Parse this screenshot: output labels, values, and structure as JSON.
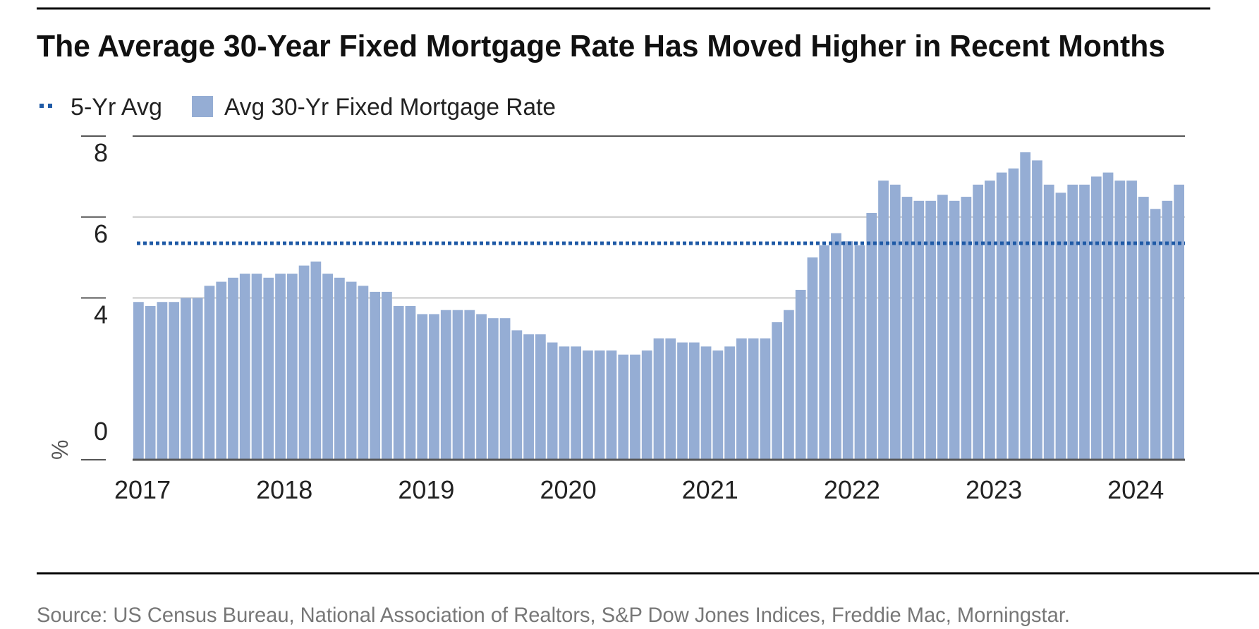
{
  "chart_data": {
    "type": "bar",
    "title": "The Average 30-Year Fixed Mortgage Rate Has Moved Higher in Recent Months",
    "ylabel": "%",
    "xlabel": "",
    "ylim": [
      0,
      8
    ],
    "yticks": [
      0,
      4,
      6,
      8
    ],
    "gridlines": [
      4,
      6,
      8
    ],
    "legend": {
      "position": "top-left",
      "avg_label": "5-Yr Avg",
      "bar_label": "Avg 30-Yr Fixed Mortgage Rate"
    },
    "x_tick_labels": [
      "2017",
      "2018",
      "2019",
      "2020",
      "2021",
      "2022",
      "2023",
      "2024"
    ],
    "start": "2017-01",
    "frequency": "monthly",
    "five_year_avg": 5.35,
    "colors": {
      "bar": "#95add4",
      "avg_line": "#1f5aa6",
      "axis": "#555555",
      "grid": "#c8c8c8"
    },
    "series": [
      {
        "name": "Avg 30-Yr Fixed Mortgage Rate",
        "values": [
          3.9,
          3.8,
          3.9,
          3.9,
          4.0,
          4.0,
          4.3,
          4.4,
          4.5,
          4.6,
          4.6,
          4.5,
          4.6,
          4.6,
          4.8,
          4.9,
          4.6,
          4.5,
          4.4,
          4.3,
          4.15,
          4.15,
          3.8,
          3.8,
          3.6,
          3.6,
          3.7,
          3.7,
          3.7,
          3.6,
          3.5,
          3.5,
          3.2,
          3.1,
          3.1,
          2.9,
          2.8,
          2.8,
          2.7,
          2.7,
          2.7,
          2.6,
          2.6,
          2.7,
          3.0,
          3.0,
          2.9,
          2.9,
          2.8,
          2.7,
          2.8,
          3.0,
          3.0,
          3.0,
          3.4,
          3.7,
          4.2,
          5.0,
          5.3,
          5.6,
          5.4,
          5.3,
          6.1,
          6.9,
          6.8,
          6.5,
          6.4,
          6.4,
          6.55,
          6.4,
          6.5,
          6.8,
          6.9,
          7.1,
          7.2,
          7.6,
          7.4,
          6.8,
          6.6,
          6.8,
          6.8,
          7.0,
          7.1,
          6.9,
          6.9,
          6.5,
          6.2,
          6.4,
          6.8
        ]
      }
    ]
  },
  "footer": {
    "source": "Source: US Census Bureau, National Association of Realtors, S&P Dow Jones Indices, Freddie Mac, Morningstar."
  }
}
